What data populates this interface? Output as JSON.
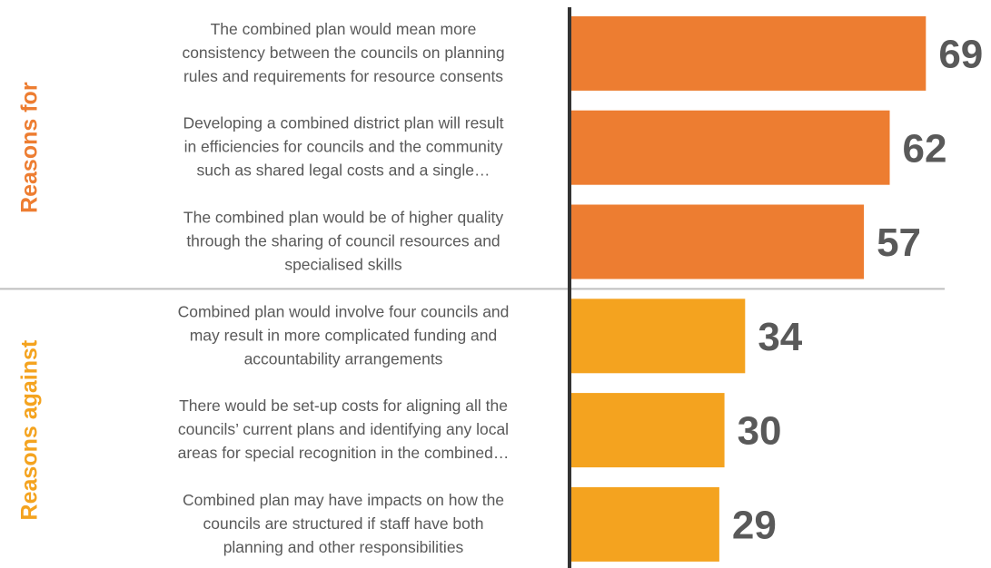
{
  "chart_data": {
    "type": "bar",
    "orientation": "horizontal",
    "xlim": [
      0,
      70
    ],
    "groups": [
      {
        "name": "Reasons for",
        "color": "#ed7d31",
        "categories": [
          "The combined plan would mean more\nconsistency between the councils on planning\nrules and requirements for resource consents",
          "Developing a combined district plan will result\nin efficiencies for councils and the community\nsuch as shared legal costs and a single…",
          "The combined plan would be of higher quality\nthrough the sharing of council resources and\nspecialised skills"
        ],
        "values": [
          69,
          62,
          57
        ]
      },
      {
        "name": "Reasons against",
        "color": "#f4a31f",
        "categories": [
          "Combined plan would involve four councils and\nmay result in more complicated funding and\naccountability arrangements",
          "There would be set-up costs for aligning all the\ncouncils’ current plans and identifying any local\nareas for special recognition in the combined…",
          "Combined plan may have impacts on how the\ncouncils are structured if staff have both\nplanning and other responsibilities"
        ],
        "values": [
          34,
          30,
          29
        ]
      }
    ]
  }
}
